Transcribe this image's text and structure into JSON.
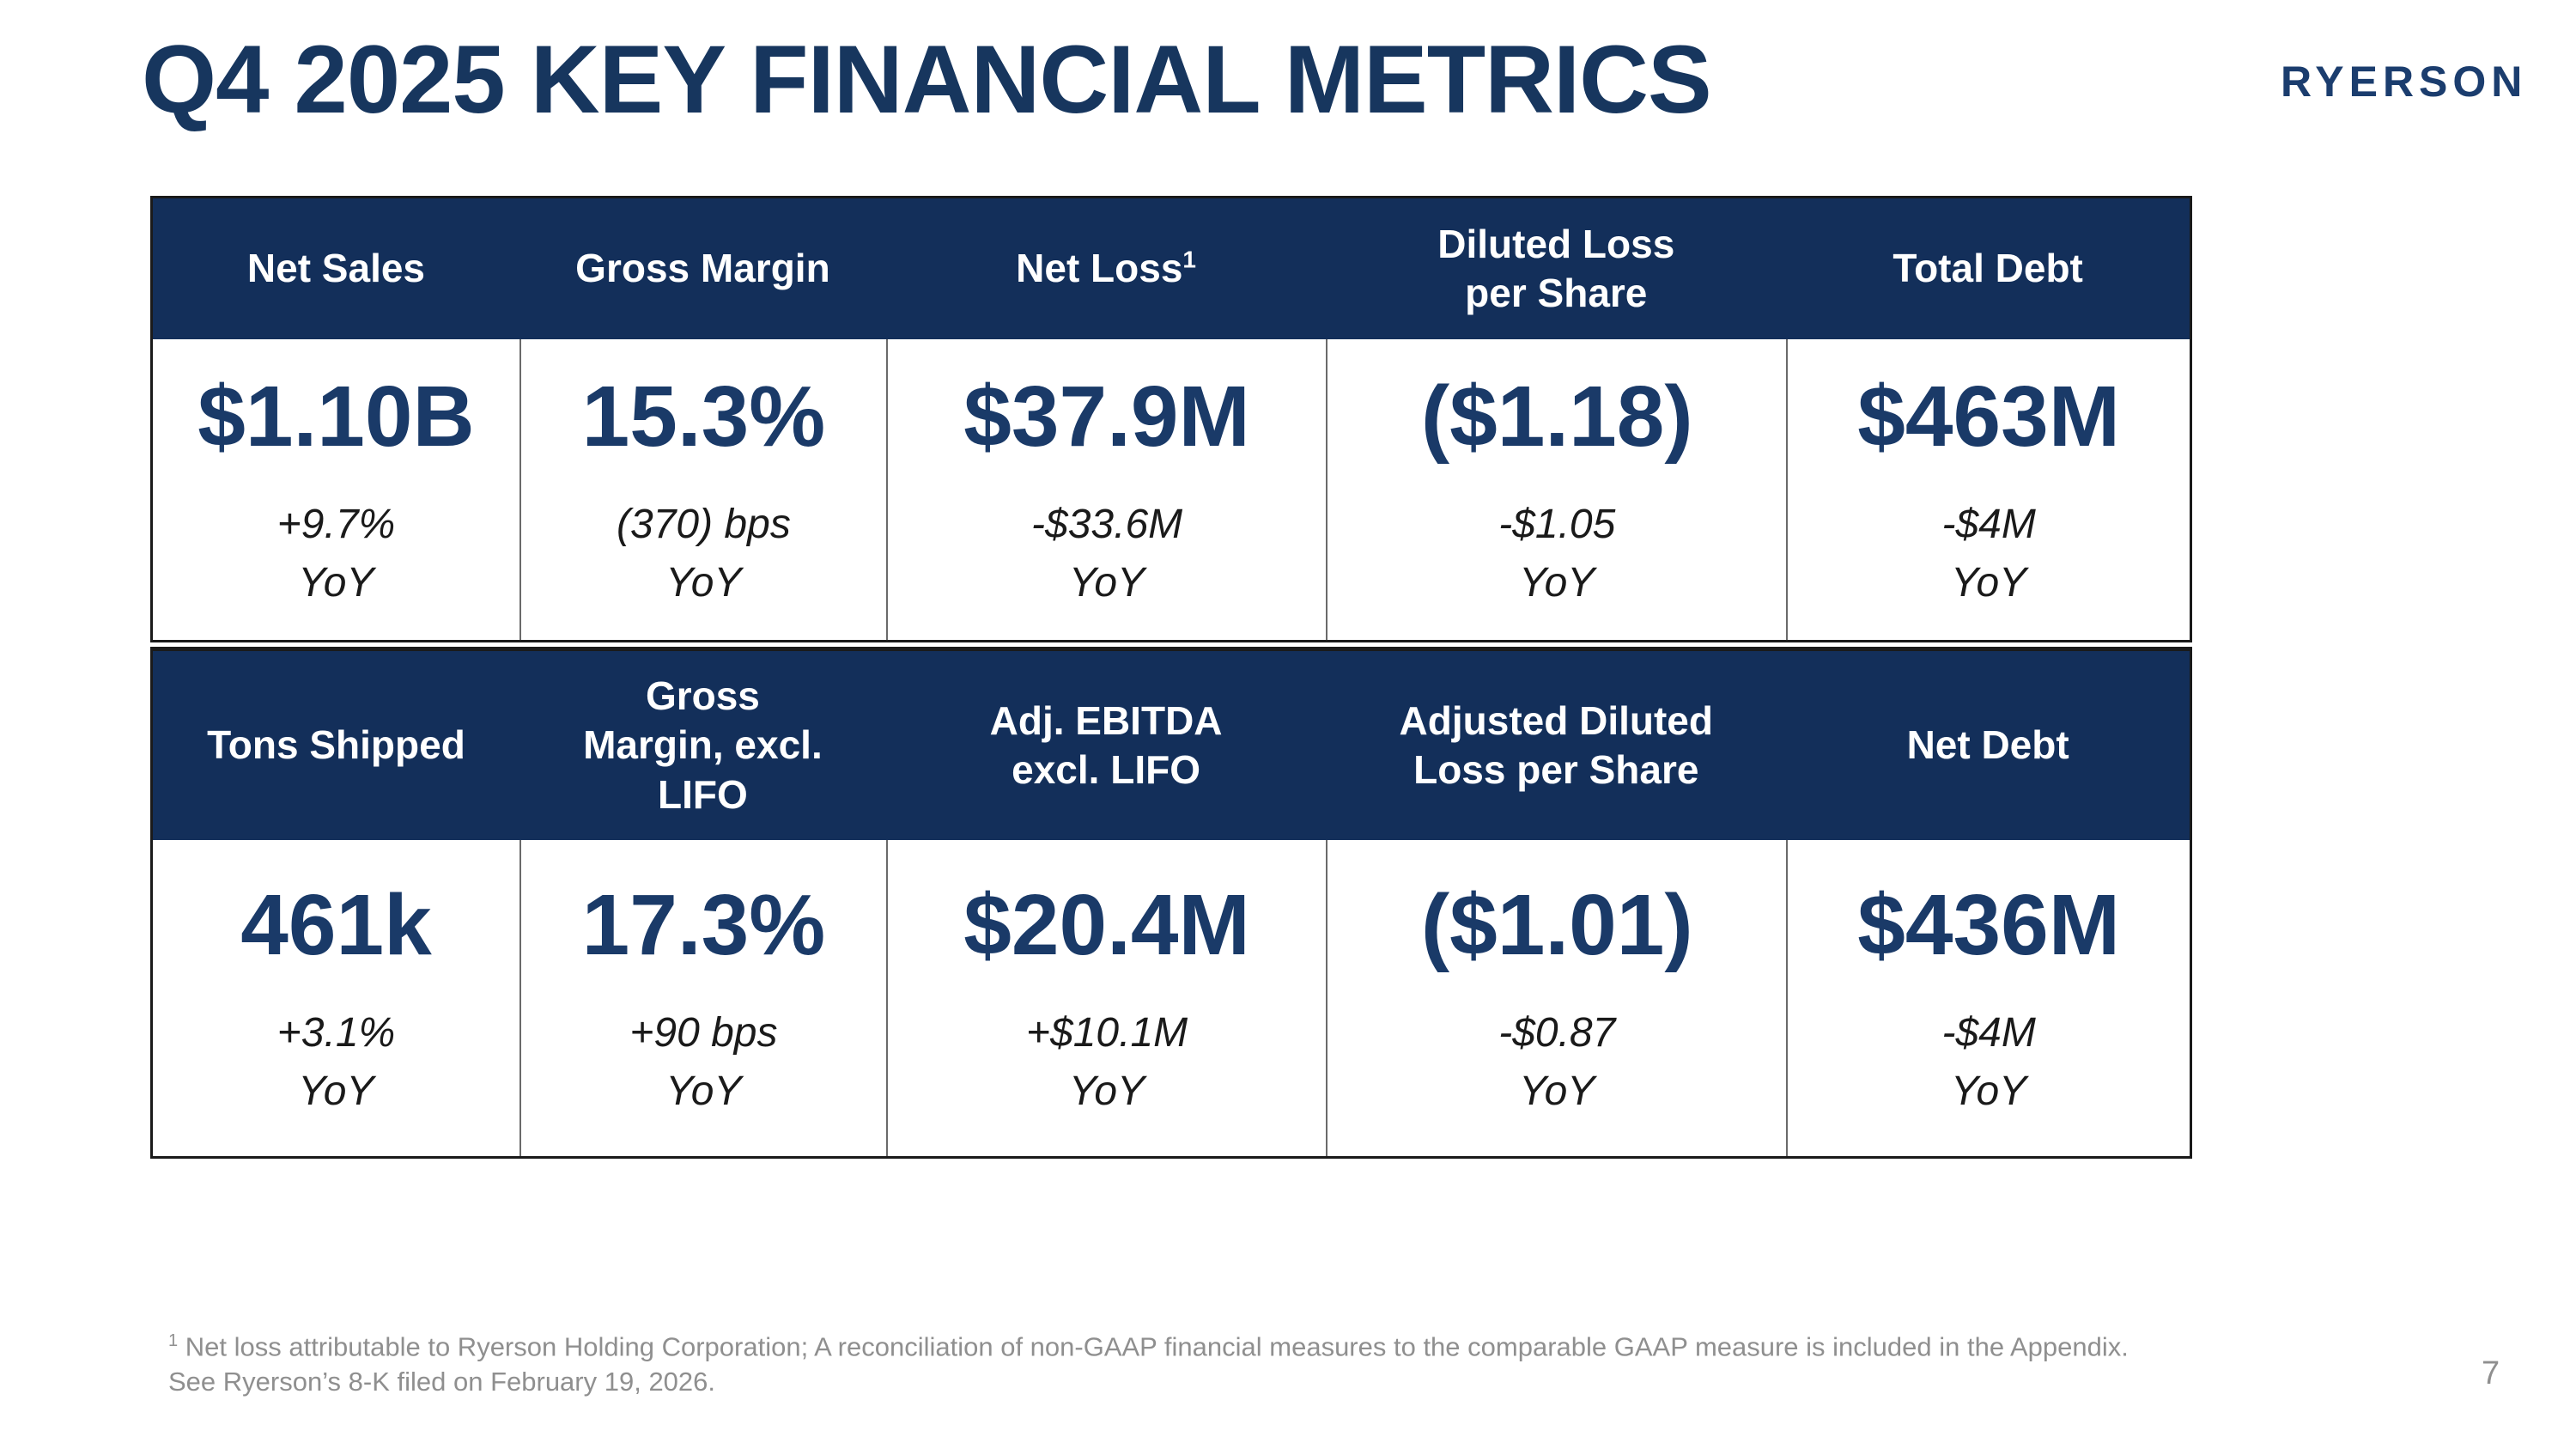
{
  "slide": {
    "title": "Q4 2025 KEY FINANCIAL METRICS",
    "brand": "RYERSON",
    "page_number": "7",
    "footnote": {
      "sup": "1",
      "line1": "Net loss attributable to Ryerson Holding Corporation; A reconciliation of non-GAAP financial measures to the comparable GAAP measure is included in the Appendix.",
      "line2": "See Ryerson’s 8-K filed on February 19, 2026."
    }
  },
  "colors": {
    "header_navy": "#132F5A",
    "value_navy": "#1A3A68",
    "title_navy": "#17365E",
    "footnote_gray": "#8F8F8F"
  },
  "tables": [
    {
      "headers": [
        {
          "label": "Net Sales"
        },
        {
          "label": "Gross Margin"
        },
        {
          "label": "Net Loss",
          "sup": "1"
        },
        {
          "label": "Diluted Loss\nper Share"
        },
        {
          "label": "Total Debt"
        }
      ],
      "cells": [
        {
          "value": "$1.10B",
          "change": "+9.7%",
          "period": "YoY"
        },
        {
          "value": "15.3%",
          "change": "(370) bps",
          "period": "YoY"
        },
        {
          "value": "$37.9M",
          "change": "-$33.6M",
          "period": "YoY"
        },
        {
          "value": "($1.18)",
          "change": "-$1.05",
          "period": "YoY"
        },
        {
          "value": "$463M",
          "change": "-$4M",
          "period": "YoY"
        }
      ]
    },
    {
      "headers": [
        {
          "label": "Tons Shipped"
        },
        {
          "label": "Gross\nMargin, excl.\nLIFO"
        },
        {
          "label": "Adj. EBITDA\nexcl. LIFO"
        },
        {
          "label": "Adjusted Diluted\nLoss per Share"
        },
        {
          "label": "Net Debt"
        }
      ],
      "cells": [
        {
          "value": "461k",
          "change": "+3.1%",
          "period": "YoY"
        },
        {
          "value": "17.3%",
          "change": "+90 bps",
          "period": "YoY"
        },
        {
          "value": "$20.4M",
          "change": "+$10.1M",
          "period": "YoY"
        },
        {
          "value": "($1.01)",
          "change": "-$0.87",
          "period": "YoY"
        },
        {
          "value": "$436M",
          "change": "-$4M",
          "period": "YoY"
        }
      ]
    }
  ]
}
